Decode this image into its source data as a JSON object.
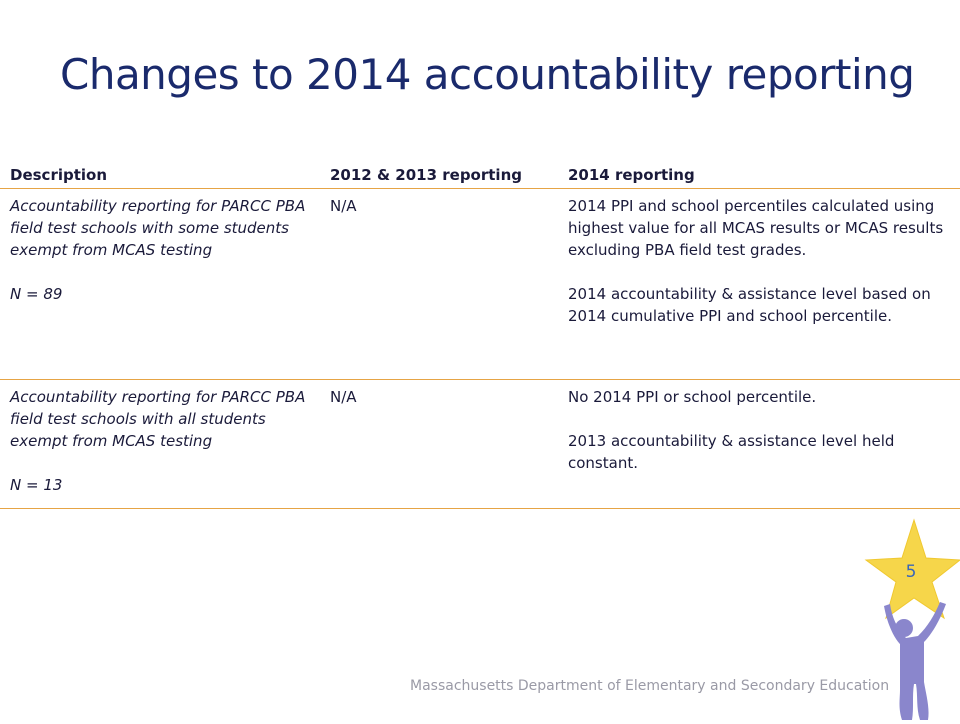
{
  "slide": {
    "title": "Changes to 2014 accountability reporting",
    "page_number": "5",
    "footer": "Massachusetts Department of Elementary and Secondary Education"
  },
  "table": {
    "headers": [
      "Description",
      "2012 & 2013 reporting",
      "2014 reporting"
    ],
    "rows": [
      {
        "description": "Accountability reporting for PARCC PBA field test schools with some students exempt from MCAS testing",
        "n": "N = 89",
        "reporting_2012_2013": "N/A",
        "reporting_2014_p1": "2014 PPI and school percentiles calculated using highest value for all MCAS results or MCAS results excluding PBA field test grades.",
        "reporting_2014_p2": "2014 accountability & assistance level based on 2014 cumulative PPI and school percentile."
      },
      {
        "description": "Accountability reporting for PARCC PBA field test schools with all students exempt from MCAS testing",
        "n": "N = 13",
        "reporting_2012_2013": "N/A",
        "reporting_2014_p1": "No 2014 PPI or school percentile.",
        "reporting_2014_p2": "2013 accountability & assistance level held constant."
      }
    ]
  },
  "colors": {
    "title": "#1a2a6c",
    "row_divider": "#e6a445",
    "star": "#f6d64a",
    "figure": "#8a86cc"
  },
  "icons": [
    "star-icon",
    "person-figure-icon"
  ]
}
